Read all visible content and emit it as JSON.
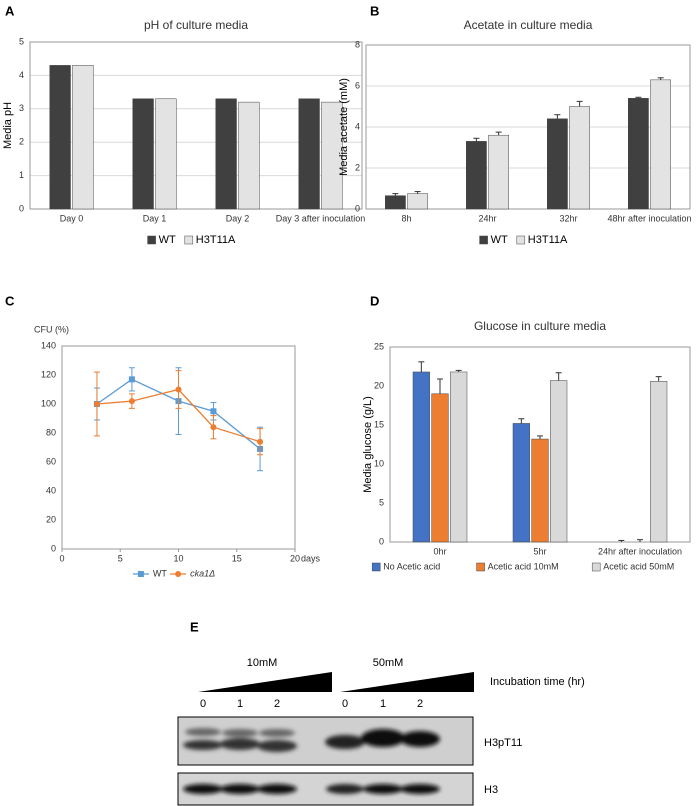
{
  "chart_data": [
    {
      "type": "bar",
      "panel": "A",
      "title": "pH of culture media",
      "ylabel": "Media pH",
      "categories": [
        "Day 0",
        "Day 1",
        "Day 2",
        "Day 3 after inoculation"
      ],
      "series": [
        {
          "name": "WT",
          "color": "#404040",
          "values": [
            4.3,
            3.3,
            3.3,
            3.3
          ]
        },
        {
          "name": "H3T11A",
          "color": "#e3e3e3",
          "values": [
            4.3,
            3.3,
            3.2,
            3.2
          ]
        }
      ],
      "ylim": [
        0,
        5
      ],
      "yticks": [
        0,
        1,
        2,
        3,
        4,
        5
      ],
      "grid": true,
      "legend": "bottom"
    },
    {
      "type": "bar",
      "panel": "B",
      "title": "Acetate in culture media",
      "ylabel": "Media acetate (mM)",
      "categories": [
        "8h",
        "24hr",
        "32hr",
        "48hr after inoculation"
      ],
      "series": [
        {
          "name": "WT",
          "color": "#404040",
          "values": [
            0.65,
            3.3,
            4.4,
            5.4
          ],
          "errors": [
            0.1,
            0.15,
            0.2,
            0.05
          ]
        },
        {
          "name": "H3T11A",
          "color": "#e3e3e3",
          "values": [
            0.75,
            3.6,
            5.0,
            6.3
          ],
          "errors": [
            0.1,
            0.15,
            0.25,
            0.1
          ]
        }
      ],
      "ylim": [
        0,
        8
      ],
      "yticks": [
        0,
        2,
        4,
        6,
        8
      ],
      "grid": true,
      "legend": "bottom"
    },
    {
      "type": "line",
      "panel": "C",
      "ylabel": "CFU (%)",
      "xlabel": "days",
      "series": [
        {
          "name": "WT",
          "color": "#5b9bd5",
          "marker": "square",
          "x": [
            3,
            6,
            10,
            13,
            17
          ],
          "values": [
            100,
            117,
            102,
            95,
            69
          ],
          "errors": [
            11,
            8,
            23,
            6,
            15
          ]
        },
        {
          "name": "cka1Δ",
          "color": "#ed7d31",
          "marker": "circle",
          "x": [
            3,
            6,
            10,
            13,
            17
          ],
          "values": [
            100,
            102,
            110,
            84,
            74
          ],
          "errors": [
            22,
            5,
            13,
            8,
            9
          ]
        }
      ],
      "xlim": [
        0,
        20
      ],
      "xticks": [
        0,
        5,
        10,
        15,
        20
      ],
      "ylim": [
        0,
        140
      ],
      "yticks": [
        0,
        20,
        40,
        60,
        80,
        100,
        120,
        140
      ],
      "grid": false,
      "legend": "bottom"
    },
    {
      "type": "bar",
      "panel": "D",
      "title": "Glucose in culture media",
      "ylabel": "Media glucose (g/L)",
      "categories": [
        "0hr",
        "5hr",
        "24hr after inoculation"
      ],
      "series": [
        {
          "name": "No Acetic acid",
          "color": "#4472c4",
          "values": [
            21.8,
            15.2,
            0
          ],
          "errors": [
            1.3,
            0.6,
            0.2
          ]
        },
        {
          "name": "Acetic acid 10mM",
          "color": "#ed7d31",
          "values": [
            19,
            13.2,
            0
          ],
          "errors": [
            1.9,
            0.4,
            0.3
          ]
        },
        {
          "name": "Acetic acid 50mM",
          "color": "#d9d9d9",
          "values": [
            21.8,
            20.7,
            20.6
          ],
          "errors": [
            0.2,
            1,
            0.6
          ]
        }
      ],
      "ylim": [
        0,
        25
      ],
      "yticks": [
        0,
        5,
        10,
        15,
        20,
        25
      ],
      "grid": false,
      "legend": "bottom"
    }
  ],
  "panel_e": {
    "label": "E",
    "groups": [
      "10mM",
      "50mM"
    ],
    "ramp_label": "Incubation time (hr)",
    "lanes": [
      "0",
      "1",
      "2",
      "0",
      "1",
      "2"
    ],
    "blots": [
      "H3pT11",
      "H3"
    ]
  }
}
